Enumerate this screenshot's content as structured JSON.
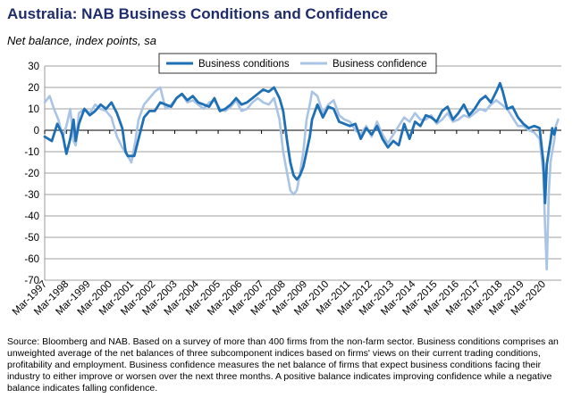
{
  "header": {
    "title": "Australia: NAB Business Conditions and Confidence",
    "subtitle": "Net balance, index points, sa"
  },
  "footer": {
    "source": "Source: Bloomberg and NAB. Based on a survey of more than 400 firms from the non-farm sector.  Business conditions comprises an unweighted average of the net balances of three subcomponent indices based on firms' views on their current trading conditions, profitability and employment.  Business confidence measures the net balance of firms that expect business conditions facing their industry to either improve or worsen over the next three months.  A positive balance indicates improving confidence while a negative balance indicates falling confidence."
  },
  "colors": {
    "conditions": "#1f6fb4",
    "confidence": "#a9c4e4",
    "grid": "#808080"
  },
  "chart_data": {
    "type": "line",
    "title": "Australia: NAB Business Conditions and Confidence",
    "subtitle": "Net balance, index points, sa",
    "ylim": [
      -70,
      30
    ],
    "yticks": [
      -70,
      -60,
      -50,
      -40,
      -30,
      -20,
      -10,
      0,
      10,
      20,
      30
    ],
    "xlim": [
      1997.17,
      2021.0
    ],
    "xtick_labels": [
      "Mar-1997",
      "Mar-1998",
      "Mar-1999",
      "Mar-2000",
      "Mar-2001",
      "Mar-2002",
      "Mar-2003",
      "Mar-2004",
      "Mar-2005",
      "Mar-2006",
      "Mar-2007",
      "Mar-2008",
      "Mar-2009",
      "Mar-2010",
      "Mar-2011",
      "Mar-2012",
      "Mar-2013",
      "Mar-2014",
      "Mar-2015",
      "Mar-2016",
      "Mar-2017",
      "Mar-2018",
      "Mar-2019",
      "Mar-2020"
    ],
    "xtick_values": [
      1997.17,
      1998.17,
      1999.17,
      2000.17,
      2001.17,
      2002.17,
      2003.17,
      2004.17,
      2005.17,
      2006.17,
      2007.17,
      2008.17,
      2009.17,
      2010.17,
      2011.17,
      2012.17,
      2013.17,
      2014.17,
      2015.17,
      2016.17,
      2017.17,
      2018.17,
      2019.17,
      2020.17
    ],
    "grid": true,
    "legend": "top",
    "series": [
      {
        "name": "Business conditions",
        "color": "#1f6fb4",
        "x": [
          1997.17,
          1997.5,
          1997.75,
          1998.0,
          1998.17,
          1998.35,
          1998.5,
          1998.6,
          1998.75,
          1999.0,
          1999.25,
          1999.5,
          1999.75,
          2000.0,
          2000.25,
          2000.5,
          2000.75,
          2000.9,
          2001.0,
          2001.17,
          2001.3,
          2001.5,
          2001.75,
          2002.0,
          2002.25,
          2002.5,
          2002.75,
          2003.0,
          2003.25,
          2003.5,
          2003.75,
          2004.0,
          2004.25,
          2004.5,
          2004.75,
          2005.0,
          2005.25,
          2005.5,
          2005.75,
          2006.0,
          2006.25,
          2006.5,
          2006.75,
          2007.0,
          2007.25,
          2007.5,
          2007.75,
          2008.0,
          2008.17,
          2008.35,
          2008.5,
          2008.65,
          2008.8,
          2008.95,
          2009.1,
          2009.25,
          2009.4,
          2009.5,
          2009.75,
          2010.0,
          2010.25,
          2010.5,
          2010.75,
          2011.0,
          2011.25,
          2011.5,
          2011.75,
          2012.0,
          2012.25,
          2012.5,
          2012.75,
          2013.0,
          2013.25,
          2013.5,
          2013.75,
          2014.0,
          2014.25,
          2014.5,
          2014.75,
          2015.0,
          2015.25,
          2015.5,
          2015.75,
          2016.0,
          2016.25,
          2016.5,
          2016.75,
          2017.0,
          2017.25,
          2017.5,
          2017.75,
          2018.0,
          2018.17,
          2018.3,
          2018.5,
          2018.75,
          2019.0,
          2019.25,
          2019.5,
          2019.75,
          2020.0,
          2020.17,
          2020.25,
          2020.33,
          2020.42,
          2020.5,
          2020.58,
          2020.67,
          2020.75
        ],
        "y": [
          -3,
          -5,
          3,
          -2,
          -11,
          -4,
          5,
          -5,
          3,
          10,
          7,
          9,
          12,
          10,
          13,
          8,
          1,
          -10,
          -12,
          -12,
          -12,
          -4,
          6,
          9,
          9,
          13,
          12,
          11,
          15,
          17,
          14,
          16,
          13,
          12,
          11,
          15,
          9,
          10,
          12,
          15,
          12,
          13,
          15,
          17,
          19,
          18,
          20,
          15,
          9,
          -5,
          -15,
          -21,
          -23,
          -21,
          -17,
          -10,
          -3,
          5,
          12,
          6,
          11,
          10,
          4,
          3,
          2,
          3,
          -4,
          1,
          -2,
          2,
          -4,
          -8,
          -5,
          -7,
          3,
          -4,
          4,
          2,
          7,
          6,
          4,
          9,
          11,
          5,
          8,
          12,
          7,
          10,
          14,
          16,
          13,
          18,
          22,
          18,
          10,
          11,
          6,
          3,
          1,
          2,
          1,
          -15,
          -34,
          -16,
          -10,
          -5,
          1,
          -2,
          1
        ]
      },
      {
        "name": "Business confidence",
        "color": "#a9c4e4",
        "x": [
          1997.17,
          1997.4,
          1997.6,
          1997.8,
          1998.0,
          1998.17,
          1998.35,
          1998.5,
          1998.6,
          1998.75,
          1999.0,
          1999.25,
          1999.5,
          1999.75,
          2000.0,
          2000.25,
          2000.5,
          2000.75,
          2001.0,
          2001.17,
          2001.35,
          2001.5,
          2001.75,
          2002.0,
          2002.25,
          2002.5,
          2002.75,
          2003.0,
          2003.25,
          2003.5,
          2003.75,
          2004.0,
          2004.25,
          2004.5,
          2004.75,
          2005.0,
          2005.25,
          2005.5,
          2005.75,
          2006.0,
          2006.25,
          2006.5,
          2006.75,
          2007.0,
          2007.25,
          2007.5,
          2007.75,
          2008.0,
          2008.17,
          2008.35,
          2008.5,
          2008.65,
          2008.8,
          2008.95,
          2009.1,
          2009.25,
          2009.4,
          2009.5,
          2009.75,
          2010.0,
          2010.25,
          2010.5,
          2010.75,
          2011.0,
          2011.25,
          2011.5,
          2011.75,
          2012.0,
          2012.25,
          2012.5,
          2012.75,
          2013.0,
          2013.25,
          2013.5,
          2013.75,
          2014.0,
          2014.25,
          2014.5,
          2014.75,
          2015.0,
          2015.25,
          2015.5,
          2015.75,
          2016.0,
          2016.25,
          2016.5,
          2016.75,
          2017.0,
          2017.25,
          2017.5,
          2017.75,
          2018.0,
          2018.25,
          2018.5,
          2018.75,
          2019.0,
          2019.25,
          2019.5,
          2019.75,
          2020.0,
          2020.17,
          2020.25,
          2020.33,
          2020.42,
          2020.5,
          2020.58,
          2020.67,
          2020.75,
          2020.85
        ],
        "y": [
          13,
          16,
          10,
          5,
          -3,
          2,
          10,
          -5,
          -7,
          8,
          10,
          8,
          12,
          10,
          9,
          6,
          -3,
          -8,
          -12,
          -15,
          -5,
          5,
          12,
          15,
          18,
          20,
          10,
          12,
          15,
          17,
          13,
          14,
          12,
          10,
          13,
          14,
          10,
          9,
          11,
          14,
          9,
          10,
          13,
          15,
          13,
          12,
          15,
          5,
          -10,
          -20,
          -28,
          -30,
          -28,
          -20,
          -10,
          5,
          12,
          18,
          16,
          8,
          12,
          14,
          7,
          5,
          4,
          0,
          -2,
          2,
          -3,
          4,
          -2,
          -6,
          -2,
          2,
          6,
          4,
          8,
          5,
          5,
          7,
          3,
          5,
          8,
          4,
          5,
          7,
          6,
          8,
          10,
          9,
          12,
          14,
          12,
          10,
          6,
          2,
          2,
          0,
          -1,
          -4,
          -20,
          -45,
          -65,
          -30,
          -15,
          -10,
          -5,
          2,
          5
        ]
      }
    ]
  }
}
